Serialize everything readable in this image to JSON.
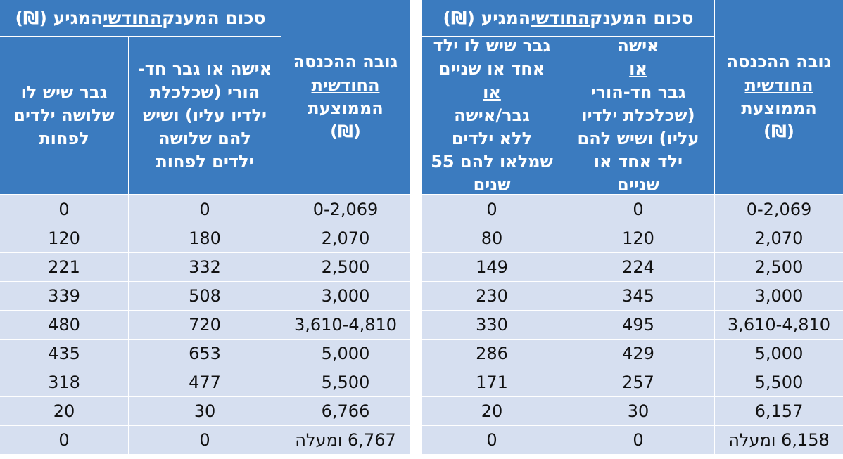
{
  "tables": [
    {
      "id": "right",
      "title_parts": [
        "סכום המענק ",
        "החודשי",
        " המגיע (₪)"
      ],
      "income_header": [
        "גובה ההכנסה",
        "החודשית",
        "הממוצעת",
        "(₪)"
      ],
      "col_a_header": [
        "אישה ",
        "או",
        "גבר חד-הורי",
        "(שכלכלת ילדיו",
        "עליו) ושיש להם",
        "ילד אחד או",
        "שניים"
      ],
      "col_b_header": [
        "גבר שיש לו ילד",
        "אחד או שניים",
        "או",
        " גבר/אישה",
        "ללא ילדים",
        "שמלאו להם 55",
        "שנים"
      ],
      "rows": [
        [
          "0-2,069",
          "0",
          "0"
        ],
        [
          "2,070",
          "120",
          "80"
        ],
        [
          "2,500",
          "224",
          "149"
        ],
        [
          "3,000",
          "345",
          "230"
        ],
        [
          "3,610-4,810",
          "495",
          "330"
        ],
        [
          "5,000",
          "429",
          "286"
        ],
        [
          "5,500",
          "257",
          "171"
        ],
        [
          "6,157",
          "30",
          "20"
        ],
        [
          "6,158 ומעלה",
          "0",
          "0"
        ]
      ]
    },
    {
      "id": "left",
      "title_parts": [
        "סכום המענק ",
        "החודשי",
        " המגיע (₪)"
      ],
      "income_header": [
        "גובה ההכנסה",
        "החודשית",
        "הממוצעת",
        "(₪)"
      ],
      "col_a_header": [
        "אישה או גבר חד-",
        "הורי (שכלכלת",
        "ילדיו עליו) ושיש",
        "להם שלושה",
        "ילדים לפחות"
      ],
      "col_b_header": [
        "גבר שיש לו",
        "שלושה ילדים",
        "לפחות"
      ],
      "rows": [
        [
          "0-2,069",
          "0",
          "0"
        ],
        [
          "2,070",
          "180",
          "120"
        ],
        [
          "2,500",
          "332",
          "221"
        ],
        [
          "3,000",
          "508",
          "339"
        ],
        [
          "3,610-4,810",
          "720",
          "480"
        ],
        [
          "5,000",
          "653",
          "435"
        ],
        [
          "5,500",
          "477",
          "318"
        ],
        [
          "6,766",
          "30",
          "20"
        ],
        [
          "6,767 ומעלה",
          "0",
          "0"
        ]
      ]
    }
  ]
}
